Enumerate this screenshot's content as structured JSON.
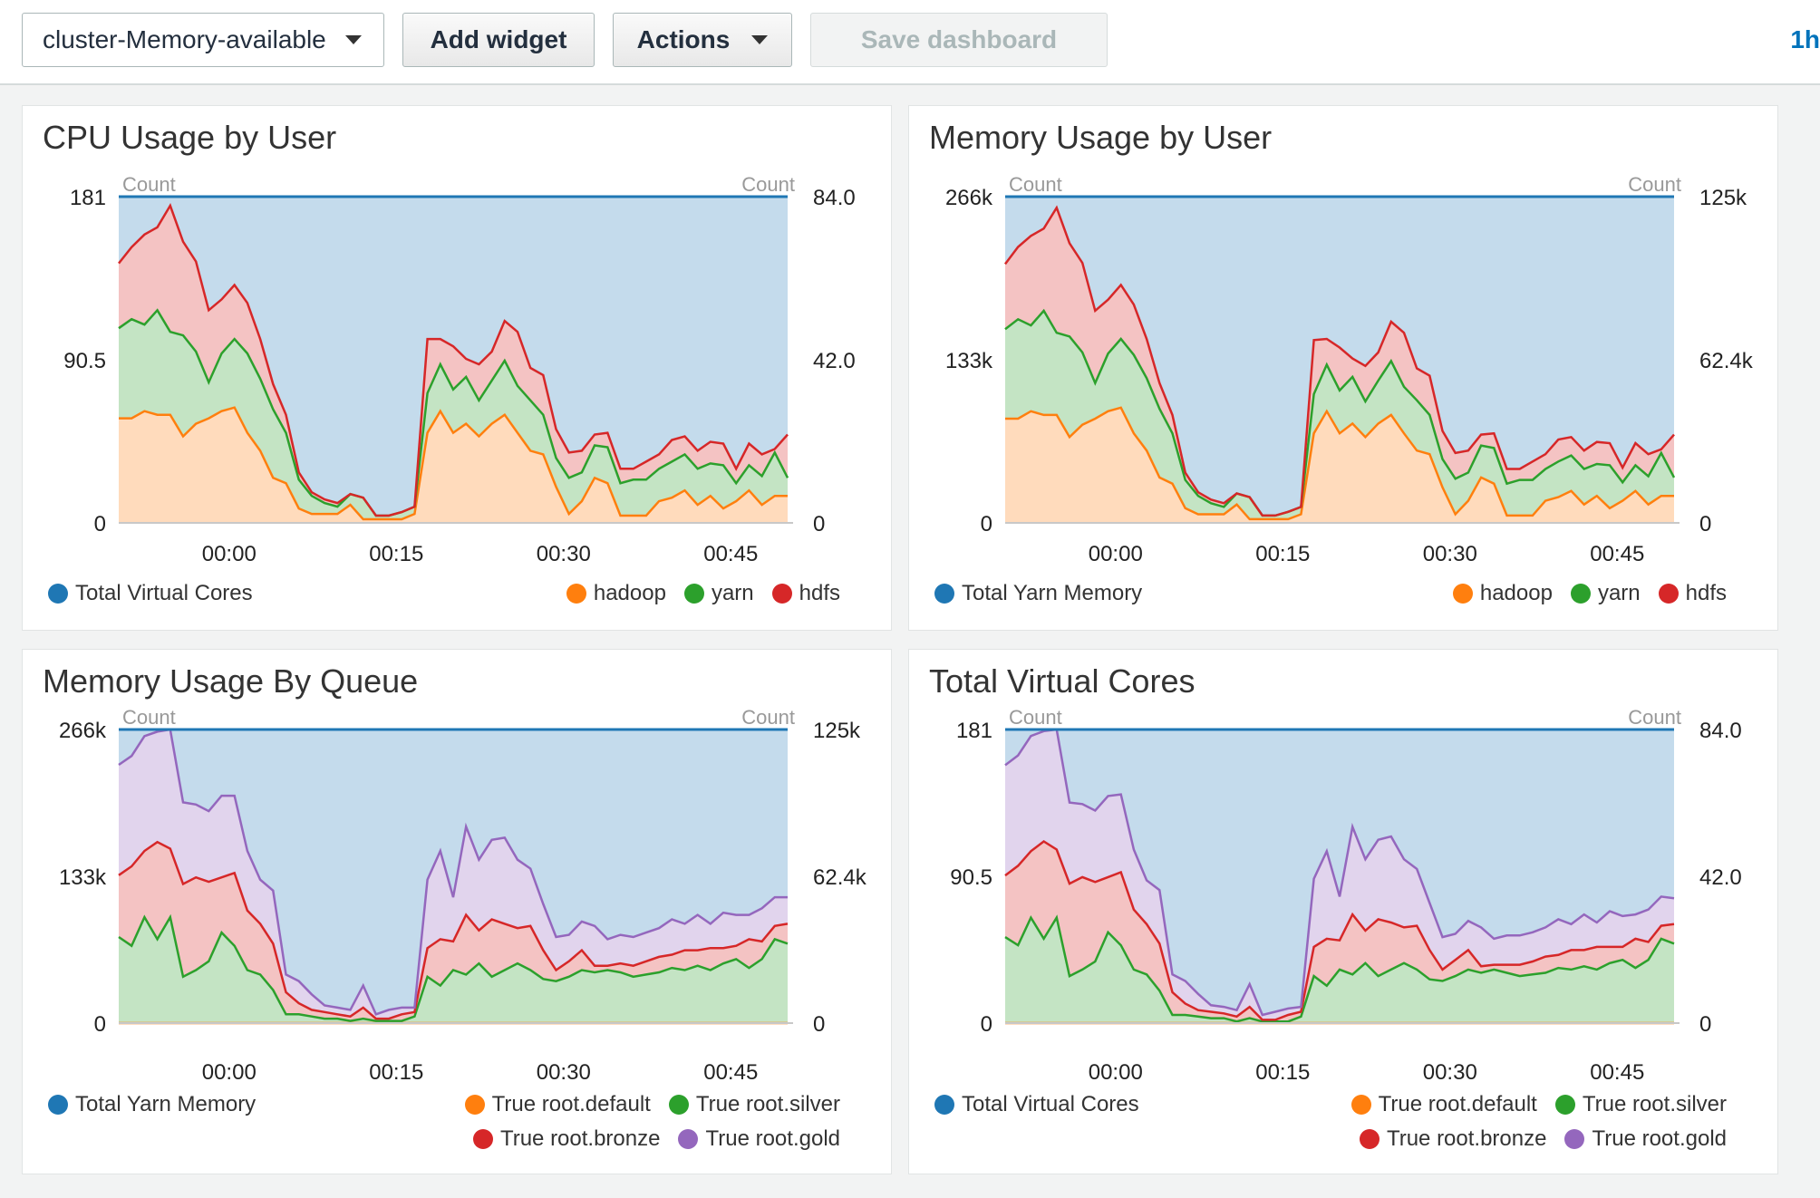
{
  "toolbar": {
    "dashboard_select": "cluster-Memory-available",
    "add_widget": "Add widget",
    "actions": "Actions",
    "save_dashboard": "Save dashboard",
    "time_range": "1h"
  },
  "colors": {
    "total": "#1f77b4",
    "total_fill": "#c4dbec",
    "hadoop": "#ff7f0e",
    "yarn": "#2ca02c",
    "hdfs": "#d62728",
    "root_default": "#ff7f0e",
    "root_silver": "#2ca02c",
    "root_bronze": "#d62728",
    "root_gold": "#9467bd"
  },
  "panels": [
    {
      "title": "CPU Usage by User",
      "left_axis_label": "Count",
      "right_axis_label": "Count",
      "left_ticks": [
        "181",
        "90.5",
        "0"
      ],
      "right_ticks": [
        "84.0",
        "42.0",
        "0"
      ],
      "legend_left": {
        "name": "Total Virtual Cores",
        "color": "#1f77b4"
      },
      "legend_right": [
        [
          {
            "name": "hadoop",
            "color": "#ff7f0e"
          },
          {
            "name": "yarn",
            "color": "#2ca02c"
          },
          {
            "name": "hdfs",
            "color": "#d62728"
          }
        ]
      ]
    },
    {
      "title": "Memory Usage by User",
      "left_axis_label": "Count",
      "right_axis_label": "Count",
      "left_ticks": [
        "266k",
        "133k",
        "0"
      ],
      "right_ticks": [
        "125k",
        "62.4k",
        "0"
      ],
      "legend_left": {
        "name": "Total Yarn Memory",
        "color": "#1f77b4"
      },
      "legend_right": [
        [
          {
            "name": "hadoop",
            "color": "#ff7f0e"
          },
          {
            "name": "yarn",
            "color": "#2ca02c"
          },
          {
            "name": "hdfs",
            "color": "#d62728"
          }
        ]
      ]
    },
    {
      "title": "Memory Usage By Queue",
      "left_axis_label": "Count",
      "right_axis_label": "Count",
      "left_ticks": [
        "266k",
        "133k",
        "0"
      ],
      "right_ticks": [
        "125k",
        "62.4k",
        "0"
      ],
      "legend_left": {
        "name": "Total Yarn Memory",
        "color": "#1f77b4"
      },
      "legend_right": [
        [
          {
            "name": "True root.default",
            "color": "#ff7f0e"
          },
          {
            "name": "True root.silver",
            "color": "#2ca02c"
          }
        ],
        [
          {
            "name": "True root.bronze",
            "color": "#d62728"
          },
          {
            "name": "True root.gold",
            "color": "#9467bd"
          }
        ]
      ]
    },
    {
      "title": "Total Virtual Cores",
      "left_axis_label": "Count",
      "right_axis_label": "Count",
      "left_ticks": [
        "181",
        "90.5",
        "0"
      ],
      "right_ticks": [
        "84.0",
        "42.0",
        "0"
      ],
      "legend_left": {
        "name": "Total Virtual Cores",
        "color": "#1f77b4"
      },
      "legend_right": [
        [
          {
            "name": "True root.default",
            "color": "#ff7f0e"
          },
          {
            "name": "True root.silver",
            "color": "#2ca02c"
          }
        ],
        [
          {
            "name": "True root.bronze",
            "color": "#d62728"
          },
          {
            "name": "True root.gold",
            "color": "#9467bd"
          }
        ]
      ]
    }
  ],
  "chart_data": [
    {
      "type": "area",
      "title": "CPU Usage by User",
      "x_ticks": [
        "00:00",
        "00:15",
        "00:30",
        "00:45"
      ],
      "ylim": [
        0,
        181
      ],
      "total": 181,
      "stacked": true,
      "series": [
        {
          "name": "hadoop",
          "values": [
            58,
            58,
            62,
            60,
            60,
            48,
            55,
            58,
            62,
            64,
            50,
            40,
            25,
            22,
            8,
            5,
            5,
            5,
            10,
            2,
            2,
            2,
            2,
            5,
            50,
            62,
            50,
            55,
            48,
            55,
            60,
            50,
            40,
            38,
            20,
            5,
            12,
            25,
            22,
            4,
            4,
            4,
            12,
            14,
            18,
            10,
            15,
            8,
            12,
            18,
            10,
            15,
            15
          ]
        },
        {
          "name": "yarn",
          "values": [
            50,
            55,
            48,
            58,
            46,
            56,
            40,
            20,
            32,
            38,
            44,
            40,
            38,
            28,
            16,
            10,
            6,
            4,
            6,
            12,
            2,
            2,
            4,
            4,
            22,
            26,
            24,
            26,
            20,
            24,
            30,
            26,
            28,
            22,
            16,
            20,
            16,
            18,
            20,
            18,
            20,
            20,
            18,
            20,
            20,
            20,
            18,
            24,
            10,
            14,
            16,
            24,
            10
          ]
        },
        {
          "name": "hdfs",
          "values": [
            36,
            40,
            50,
            46,
            70,
            52,
            50,
            40,
            30,
            30,
            28,
            22,
            14,
            10,
            4,
            2,
            2,
            2,
            0,
            0,
            0,
            0,
            0,
            0,
            30,
            14,
            24,
            10,
            20,
            16,
            22,
            30,
            18,
            22,
            16,
            14,
            12,
            6,
            8,
            8,
            6,
            10,
            8,
            12,
            10,
            10,
            12,
            12,
            8,
            12,
            12,
            2,
            24
          ]
        }
      ]
    },
    {
      "type": "area",
      "title": "Memory Usage by User",
      "x_ticks": [
        "00:00",
        "00:15",
        "00:30",
        "00:45"
      ],
      "ylim": [
        0,
        266000
      ],
      "total": 266000,
      "stacked": true,
      "series": [
        {
          "name": "hadoop",
          "values": [
            85000,
            85000,
            91000,
            88000,
            88000,
            70000,
            80000,
            85000,
            91000,
            94000,
            73000,
            59000,
            37000,
            32000,
            12000,
            7000,
            7000,
            7000,
            15000,
            3000,
            3000,
            3000,
            3000,
            7000,
            73000,
            91000,
            73000,
            81000,
            70000,
            81000,
            88000,
            73000,
            59000,
            56000,
            29000,
            7000,
            18000,
            37000,
            32000,
            6000,
            6000,
            6000,
            18000,
            21000,
            26000,
            15000,
            22000,
            12000,
            18000,
            26000,
            15000,
            22000,
            22000
          ]
        },
        {
          "name": "yarn",
          "values": [
            73000,
            81000,
            70000,
            85000,
            67000,
            82000,
            59000,
            29000,
            47000,
            56000,
            64000,
            59000,
            56000,
            41000,
            23000,
            15000,
            9000,
            6000,
            9000,
            18000,
            3000,
            3000,
            6000,
            6000,
            32000,
            38000,
            35000,
            38000,
            29000,
            35000,
            44000,
            38000,
            41000,
            32000,
            23000,
            29000,
            23000,
            26000,
            29000,
            26000,
            29000,
            29000,
            26000,
            29000,
            29000,
            29000,
            26000,
            35000,
            15000,
            21000,
            23000,
            35000,
            15000
          ]
        },
        {
          "name": "hdfs",
          "values": [
            53000,
            59000,
            73000,
            67000,
            102000,
            76000,
            73000,
            59000,
            44000,
            44000,
            41000,
            32000,
            21000,
            15000,
            6000,
            3000,
            3000,
            3000,
            0,
            0,
            0,
            0,
            0,
            0,
            44000,
            21000,
            35000,
            15000,
            29000,
            23000,
            32000,
            44000,
            26000,
            32000,
            23000,
            21000,
            18000,
            9000,
            12000,
            12000,
            9000,
            15000,
            12000,
            18000,
            15000,
            15000,
            18000,
            18000,
            12000,
            18000,
            18000,
            3000,
            35000
          ]
        }
      ]
    },
    {
      "type": "area",
      "title": "Memory Usage By Queue",
      "x_ticks": [
        "00:00",
        "00:15",
        "00:30",
        "00:45"
      ],
      "ylim": [
        0,
        266000
      ],
      "total": 266000,
      "stacked": true,
      "series": [
        {
          "name": "True root.default",
          "values": [
            0,
            0,
            0,
            0,
            0,
            0,
            0,
            0,
            0,
            0,
            0,
            0,
            0,
            0,
            0,
            0,
            0,
            0,
            0,
            0,
            0,
            0,
            0,
            0,
            0,
            0,
            0,
            0,
            0,
            0,
            0,
            0,
            0,
            0,
            0,
            0,
            0,
            0,
            0,
            0,
            0,
            0,
            0,
            0,
            0,
            0,
            0,
            0,
            0,
            0,
            0,
            0,
            0
          ]
        },
        {
          "name": "True root.silver",
          "values": [
            78000,
            70000,
            96000,
            76000,
            96000,
            42000,
            48000,
            56000,
            82000,
            70000,
            48000,
            44000,
            30000,
            8000,
            8000,
            6000,
            4000,
            4000,
            2000,
            4000,
            2000,
            2000,
            2000,
            6000,
            42000,
            34000,
            48000,
            44000,
            54000,
            42000,
            48000,
            54000,
            48000,
            40000,
            38000,
            42000,
            48000,
            46000,
            48000,
            46000,
            42000,
            44000,
            46000,
            50000,
            48000,
            52000,
            48000,
            54000,
            58000,
            50000,
            58000,
            76000,
            72000
          ]
        },
        {
          "name": "True root.bronze",
          "values": [
            56000,
            72000,
            60000,
            88000,
            62000,
            84000,
            84000,
            72000,
            50000,
            66000,
            54000,
            46000,
            42000,
            20000,
            10000,
            6000,
            6000,
            4000,
            4000,
            10000,
            2000,
            2000,
            6000,
            4000,
            26000,
            42000,
            26000,
            54000,
            30000,
            52000,
            42000,
            32000,
            40000,
            26000,
            10000,
            14000,
            18000,
            6000,
            4000,
            8000,
            10000,
            12000,
            14000,
            12000,
            18000,
            14000,
            20000,
            14000,
            12000,
            26000,
            16000,
            12000,
            18000
          ]
        },
        {
          "name": "True root.gold",
          "values": [
            100000,
            100000,
            104000,
            100000,
            108000,
            74000,
            66000,
            64000,
            74000,
            70000,
            54000,
            40000,
            48000,
            16000,
            20000,
            14000,
            6000,
            6000,
            6000,
            20000,
            4000,
            8000,
            6000,
            4000,
            62000,
            80000,
            40000,
            80000,
            64000,
            72000,
            78000,
            62000,
            52000,
            42000,
            30000,
            24000,
            26000,
            36000,
            24000,
            26000,
            26000,
            26000,
            26000,
            32000,
            24000,
            32000,
            22000,
            32000,
            28000,
            22000,
            30000,
            26000,
            24000
          ]
        }
      ]
    },
    {
      "type": "area",
      "title": "Total Virtual Cores",
      "x_ticks": [
        "00:00",
        "00:15",
        "00:30",
        "00:45"
      ],
      "ylim": [
        0,
        181
      ],
      "total": 181,
      "stacked": true,
      "series": [
        {
          "name": "True root.default",
          "values": [
            0,
            0,
            0,
            0,
            0,
            0,
            0,
            0,
            0,
            0,
            0,
            0,
            0,
            0,
            0,
            0,
            0,
            0,
            0,
            0,
            0,
            0,
            0,
            0,
            0,
            0,
            0,
            0,
            0,
            0,
            0,
            0,
            0,
            0,
            0,
            0,
            0,
            0,
            0,
            0,
            0,
            0,
            0,
            0,
            0,
            0,
            0,
            0,
            0,
            0,
            0,
            0,
            0
          ]
        },
        {
          "name": "True root.silver",
          "values": [
            53,
            48,
            65,
            52,
            65,
            29,
            33,
            38,
            56,
            48,
            33,
            30,
            20,
            5,
            5,
            4,
            3,
            3,
            1,
            3,
            1,
            1,
            1,
            4,
            29,
            23,
            33,
            30,
            37,
            29,
            33,
            37,
            33,
            27,
            26,
            29,
            33,
            31,
            33,
            31,
            29,
            30,
            31,
            34,
            33,
            35,
            33,
            37,
            39,
            34,
            39,
            52,
            49
          ]
        },
        {
          "name": "True root.bronze",
          "values": [
            38,
            49,
            41,
            60,
            42,
            57,
            57,
            49,
            34,
            45,
            37,
            31,
            29,
            14,
            7,
            4,
            4,
            3,
            3,
            7,
            1,
            1,
            4,
            3,
            18,
            29,
            18,
            37,
            20,
            35,
            29,
            22,
            27,
            18,
            7,
            10,
            12,
            4,
            3,
            5,
            7,
            8,
            10,
            8,
            12,
            10,
            14,
            10,
            8,
            18,
            11,
            8,
            12
          ]
        },
        {
          "name": "True root.gold",
          "values": [
            68,
            68,
            71,
            68,
            74,
            50,
            45,
            44,
            50,
            48,
            37,
            27,
            33,
            11,
            14,
            10,
            4,
            4,
            4,
            14,
            3,
            5,
            4,
            3,
            42,
            54,
            27,
            54,
            44,
            49,
            53,
            42,
            35,
            29,
            20,
            16,
            18,
            24,
            16,
            18,
            18,
            18,
            18,
            22,
            16,
            22,
            15,
            22,
            19,
            15,
            20,
            18,
            16
          ]
        }
      ]
    }
  ]
}
